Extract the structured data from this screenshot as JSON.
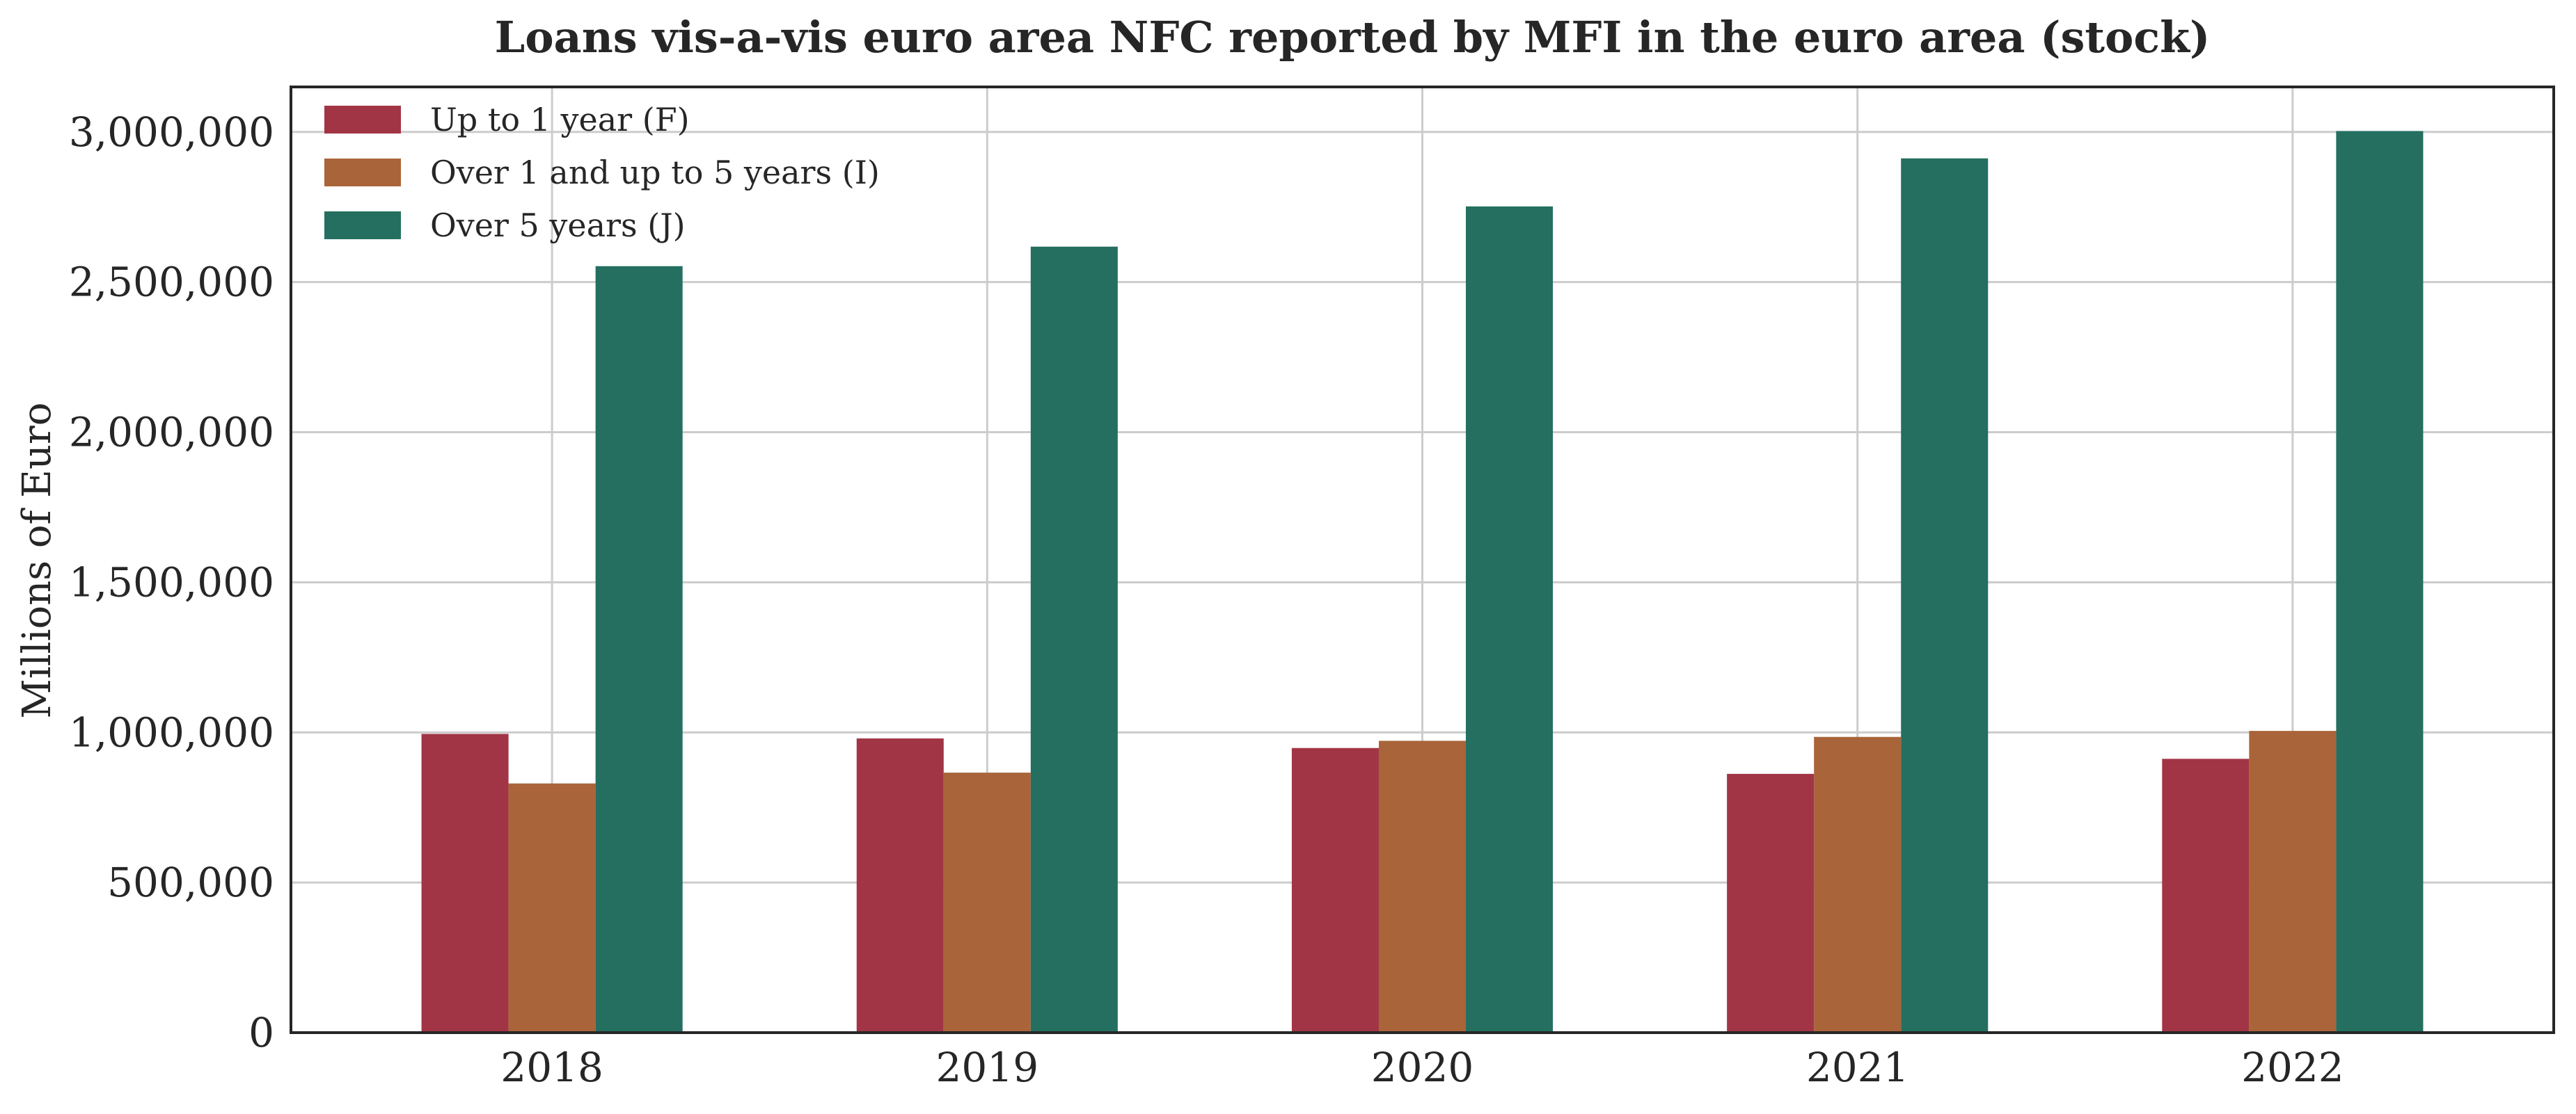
{
  "chart_data": {
    "type": "bar",
    "title": "Loans vis-a-vis euro area NFC reported by MFI in the euro area (stock)",
    "xlabel": "",
    "ylabel": "Millions of Euro",
    "categories": [
      "2018",
      "2019",
      "2020",
      "2021",
      "2022"
    ],
    "series": [
      {
        "name": "Up to 1 year (F)",
        "color": "#a13545",
        "values": [
          995000,
          980000,
          948000,
          862000,
          912000
        ]
      },
      {
        "name": "Over 1 and up to 5 years (I)",
        "color": "#a96439",
        "values": [
          830000,
          866000,
          972000,
          985000,
          1005000
        ]
      },
      {
        "name": "Over 5 years (J)",
        "color": "#246f60",
        "values": [
          2553000,
          2618000,
          2752000,
          2912000,
          3003000
        ]
      }
    ],
    "ylim": [
      0,
      3150000
    ],
    "yticks": [
      0,
      500000,
      1000000,
      1500000,
      2000000,
      2500000,
      3000000
    ],
    "ytick_labels": [
      "0",
      "500,000",
      "1,000,000",
      "1,500,000",
      "2,000,000",
      "2,500,000",
      "3,000,000"
    ],
    "grid": true,
    "legend_position": "top-left"
  }
}
